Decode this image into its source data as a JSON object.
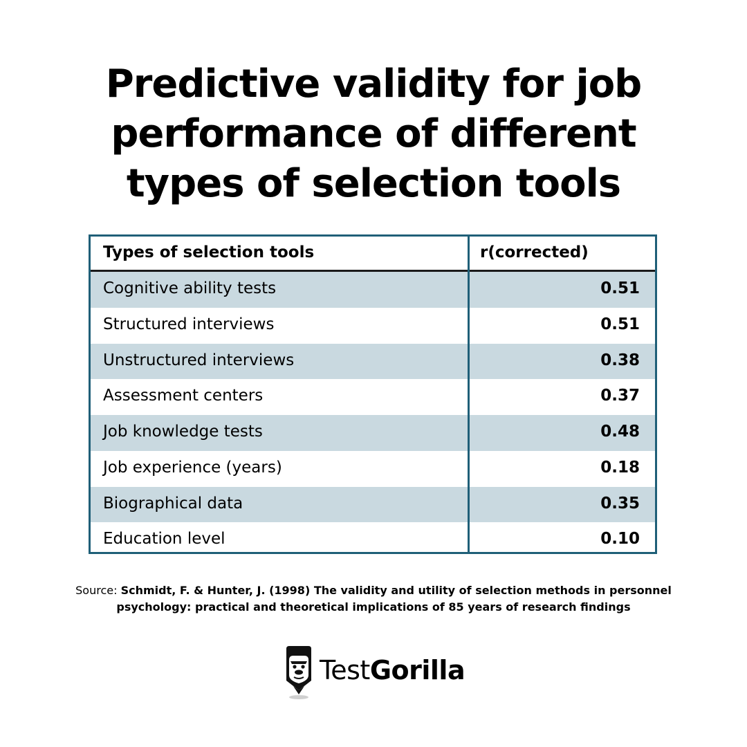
{
  "title": {
    "line1": "Predictive validity for job",
    "line2": "performance of different",
    "line3": "types of selection tools"
  },
  "table": {
    "headers": {
      "tool": "Types of selection tools",
      "r": "r(corrected)"
    },
    "rows": [
      {
        "tool": "Cognitive ability tests",
        "r": "0.51"
      },
      {
        "tool": "Structured interviews",
        "r": "0.51"
      },
      {
        "tool": "Unstructured interviews",
        "r": "0.38"
      },
      {
        "tool": "Assessment centers",
        "r": "0.37"
      },
      {
        "tool": "Job knowledge tests",
        "r": "0.48"
      },
      {
        "tool": "Job experience (years)",
        "r": "0.18"
      },
      {
        "tool": "Biographical data",
        "r": "0.35"
      },
      {
        "tool": "Education level",
        "r": "0.10"
      }
    ]
  },
  "source": {
    "lead": "Source: ",
    "ref_line1": "Schmidt, F. & Hunter, J. (1998) The validity and utility of selection methods in personnel",
    "ref_line2": "psychology: practical and theoretical implications of 85 years of research findings"
  },
  "logo": {
    "text_light": "Test",
    "text_bold": "Gorilla",
    "icon": "gorilla-pencil-icon"
  },
  "colors": {
    "border": "#1f5f78",
    "shaded_row": "#c9d9e0",
    "text": "#000000"
  }
}
